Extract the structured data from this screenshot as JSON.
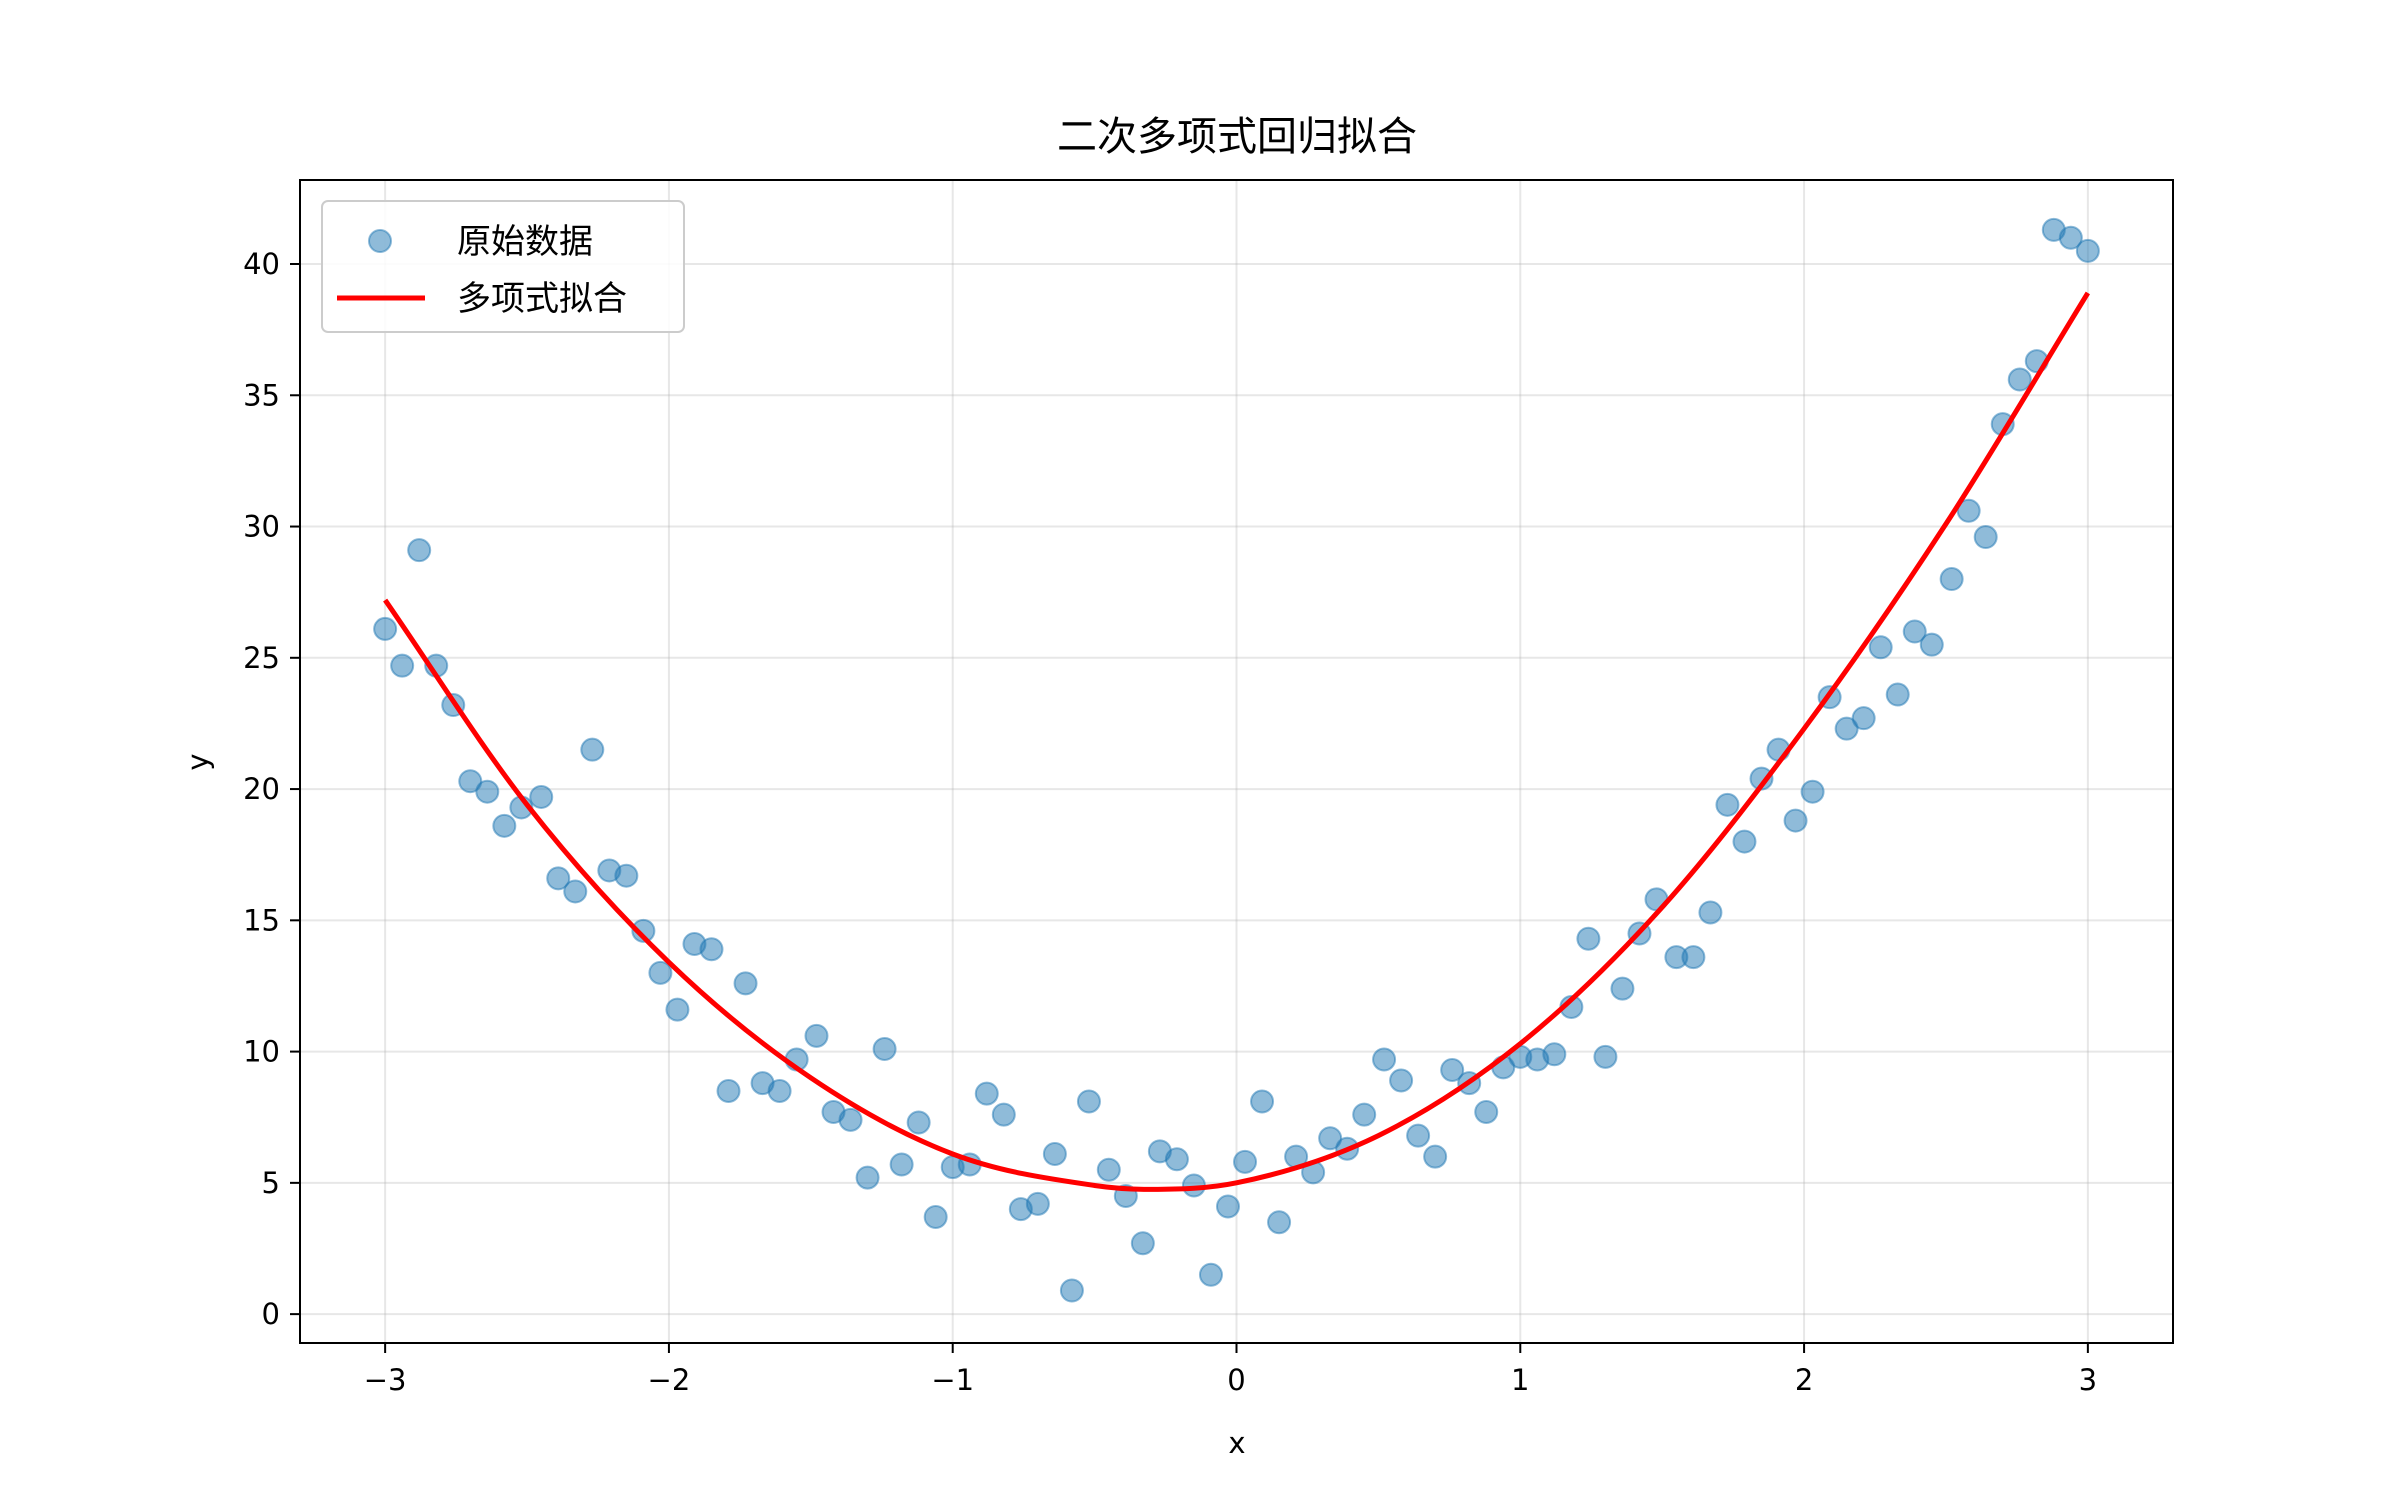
{
  "chart_data": {
    "type": "scatter",
    "title": "二次多项式回归拟合",
    "xlabel": "x",
    "ylabel": "y",
    "xlim": [
      -3.3,
      3.3
    ],
    "ylim": [
      -1.1,
      43.2
    ],
    "xticks": [
      -3,
      -2,
      -1,
      0,
      1,
      2,
      3
    ],
    "xtick_labels": [
      "−3",
      "−2",
      "−1",
      "0",
      "1",
      "2",
      "3"
    ],
    "yticks": [
      0,
      5,
      10,
      15,
      20,
      25,
      30,
      35,
      40
    ],
    "ytick_labels": [
      "0",
      "5",
      "10",
      "15",
      "20",
      "25",
      "30",
      "35",
      "40"
    ],
    "grid": true,
    "legend_position": "top-left",
    "series": [
      {
        "name": "原始数据",
        "type": "scatter",
        "color": "#1f77b4",
        "alpha": 0.5,
        "x": [
          -3.0,
          -2.94,
          -2.88,
          -2.82,
          -2.76,
          -2.7,
          -2.64,
          -2.58,
          -2.52,
          -2.45,
          -2.39,
          -2.33,
          -2.27,
          -2.21,
          -2.15,
          -2.09,
          -2.03,
          -1.97,
          -1.91,
          -1.85,
          -1.79,
          -1.73,
          -1.67,
          -1.61,
          -1.55,
          -1.48,
          -1.42,
          -1.36,
          -1.3,
          -1.24,
          -1.18,
          -1.12,
          -1.06,
          -1.0,
          -0.94,
          -0.88,
          -0.82,
          -0.76,
          -0.7,
          -0.64,
          -0.58,
          -0.52,
          -0.45,
          -0.39,
          -0.33,
          -0.27,
          -0.21,
          -0.15,
          -0.09,
          -0.03,
          0.03,
          0.09,
          0.15,
          0.21,
          0.27,
          0.33,
          0.39,
          0.45,
          0.52,
          0.58,
          0.64,
          0.7,
          0.76,
          0.82,
          0.88,
          0.94,
          1.0,
          1.06,
          1.12,
          1.18,
          1.24,
          1.3,
          1.36,
          1.42,
          1.48,
          1.55,
          1.61,
          1.67,
          1.73,
          1.79,
          1.85,
          1.91,
          1.97,
          2.03,
          2.09,
          2.15,
          2.21,
          2.27,
          2.33,
          2.39,
          2.45,
          2.52,
          2.58,
          2.64,
          2.7,
          2.76,
          2.82,
          2.88,
          2.94,
          3.0
        ],
        "y": [
          26.1,
          24.7,
          29.1,
          24.7,
          23.2,
          20.3,
          19.9,
          18.6,
          19.3,
          19.7,
          16.6,
          16.1,
          21.5,
          16.9,
          16.7,
          14.6,
          13.0,
          11.6,
          14.1,
          13.9,
          8.5,
          12.6,
          8.8,
          8.5,
          9.7,
          10.6,
          7.7,
          7.4,
          5.2,
          10.1,
          5.7,
          7.3,
          3.7,
          5.6,
          5.7,
          8.4,
          7.6,
          4.0,
          4.2,
          6.1,
          0.9,
          8.1,
          5.5,
          4.5,
          2.7,
          6.2,
          5.9,
          4.9,
          1.5,
          4.1,
          5.8,
          8.1,
          3.5,
          6.0,
          5.4,
          6.7,
          6.3,
          7.6,
          9.7,
          8.9,
          6.8,
          6.0,
          9.3,
          8.8,
          7.7,
          9.4,
          9.8,
          9.7,
          9.9,
          11.7,
          14.3,
          9.8,
          12.4,
          14.5,
          15.8,
          13.6,
          13.6,
          15.3,
          19.4,
          18.0,
          20.4,
          21.5,
          18.8,
          19.9,
          23.5,
          22.3,
          22.7,
          25.4,
          23.6,
          26.0,
          25.5,
          28.0,
          30.6,
          29.6,
          33.9,
          35.6,
          36.3,
          41.3,
          41.0,
          40.5
        ]
      },
      {
        "name": "多项式拟合",
        "type": "line",
        "color": "#ff0000",
        "x": [
          -3.0,
          -2.5,
          -2.0,
          -1.5,
          -1.0,
          -0.5,
          -0.3,
          0.0,
          0.5,
          1.0,
          1.5,
          2.0,
          2.5,
          3.0
        ],
        "y": [
          27.2,
          19.4,
          13.4,
          9.0,
          6.1,
          4.9,
          4.75,
          5.0,
          6.8,
          10.3,
          15.5,
          22.3,
          30.1,
          38.9
        ]
      }
    ]
  }
}
